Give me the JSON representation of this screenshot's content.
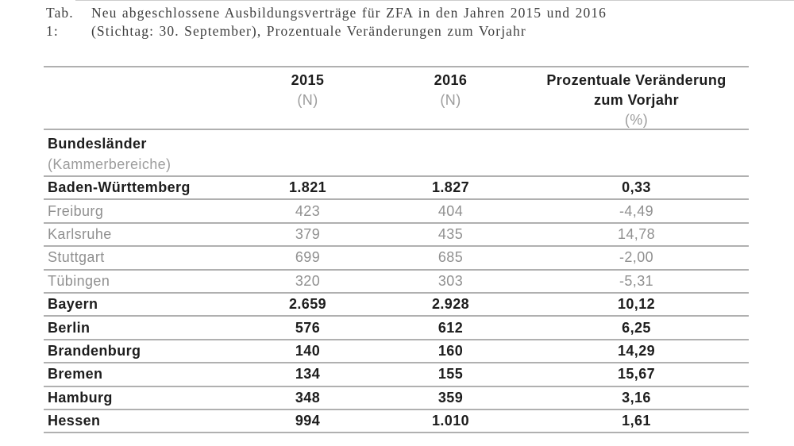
{
  "caption": {
    "label": "Tab. 1:",
    "line1": "Neu abgeschlossene Ausbildungsverträge für ZFA in den Jahren 2015 und 2016",
    "line2": "(Stichtag: 30. September), Prozentuale Veränderungen zum Vorjahr"
  },
  "table": {
    "col2015": {
      "year": "2015",
      "unit": "(N)"
    },
    "col2016": {
      "year": "2016",
      "unit": "(N)"
    },
    "colChange": {
      "line1": "Prozentuale Veränderung",
      "line2": "zum Vorjahr",
      "unit": "(%)"
    },
    "group": {
      "line1": "Bundesländer",
      "line2": "(Kammerbereiche)"
    },
    "rows": [
      {
        "label": "Baden-Württemberg",
        "n2015": "1.821",
        "n2016": "1.827",
        "change": "0,33",
        "style": "state"
      },
      {
        "label": "Freiburg",
        "n2015": "423",
        "n2016": "404",
        "change": "-4,49",
        "style": "chamber"
      },
      {
        "label": "Karlsruhe",
        "n2015": "379",
        "n2016": "435",
        "change": "14,78",
        "style": "chamber"
      },
      {
        "label": "Stuttgart",
        "n2015": "699",
        "n2016": "685",
        "change": "-2,00",
        "style": "chamber"
      },
      {
        "label": "Tübingen",
        "n2015": "320",
        "n2016": "303",
        "change": "-5,31",
        "style": "chamber"
      },
      {
        "label": "Bayern",
        "n2015": "2.659",
        "n2016": "2.928",
        "change": "10,12",
        "style": "state"
      },
      {
        "label": "Berlin",
        "n2015": "576",
        "n2016": "612",
        "change": "6,25",
        "style": "state"
      },
      {
        "label": "Brandenburg",
        "n2015": "140",
        "n2016": "160",
        "change": "14,29",
        "style": "state"
      },
      {
        "label": "Bremen",
        "n2015": "134",
        "n2016": "155",
        "change": "15,67",
        "style": "state"
      },
      {
        "label": "Hamburg",
        "n2015": "348",
        "n2016": "359",
        "change": "3,16",
        "style": "state"
      },
      {
        "label": "Hessen",
        "n2015": "994",
        "n2016": "1.010",
        "change": "1,61",
        "style": "state"
      }
    ]
  },
  "colors": {
    "text_dark": "#1d1d1d",
    "text_gray": "#909090",
    "rule_gray": "#b0b0b0"
  },
  "chart_data": {
    "type": "table",
    "title": "Tab. 1: Neu abgeschlossene Ausbildungsverträge für ZFA in den Jahren 2015 und 2016 (Stichtag: 30. September), Prozentuale Veränderungen zum Vorjahr",
    "columns": [
      "Bundesländer (Kammerbereiche)",
      "2015 (N)",
      "2016 (N)",
      "Prozentuale Veränderung zum Vorjahr (%)"
    ],
    "rows": [
      [
        "Baden-Württemberg",
        1821,
        1827,
        0.33
      ],
      [
        "Freiburg",
        423,
        404,
        -4.49
      ],
      [
        "Karlsruhe",
        379,
        435,
        14.78
      ],
      [
        "Stuttgart",
        699,
        685,
        -2.0
      ],
      [
        "Tübingen",
        320,
        303,
        -5.31
      ],
      [
        "Bayern",
        2659,
        2928,
        10.12
      ],
      [
        "Berlin",
        576,
        612,
        6.25
      ],
      [
        "Brandenburg",
        140,
        160,
        14.29
      ],
      [
        "Bremen",
        134,
        155,
        15.67
      ],
      [
        "Hamburg",
        348,
        359,
        3.16
      ],
      [
        "Hessen",
        994,
        1010,
        1.61
      ]
    ]
  }
}
